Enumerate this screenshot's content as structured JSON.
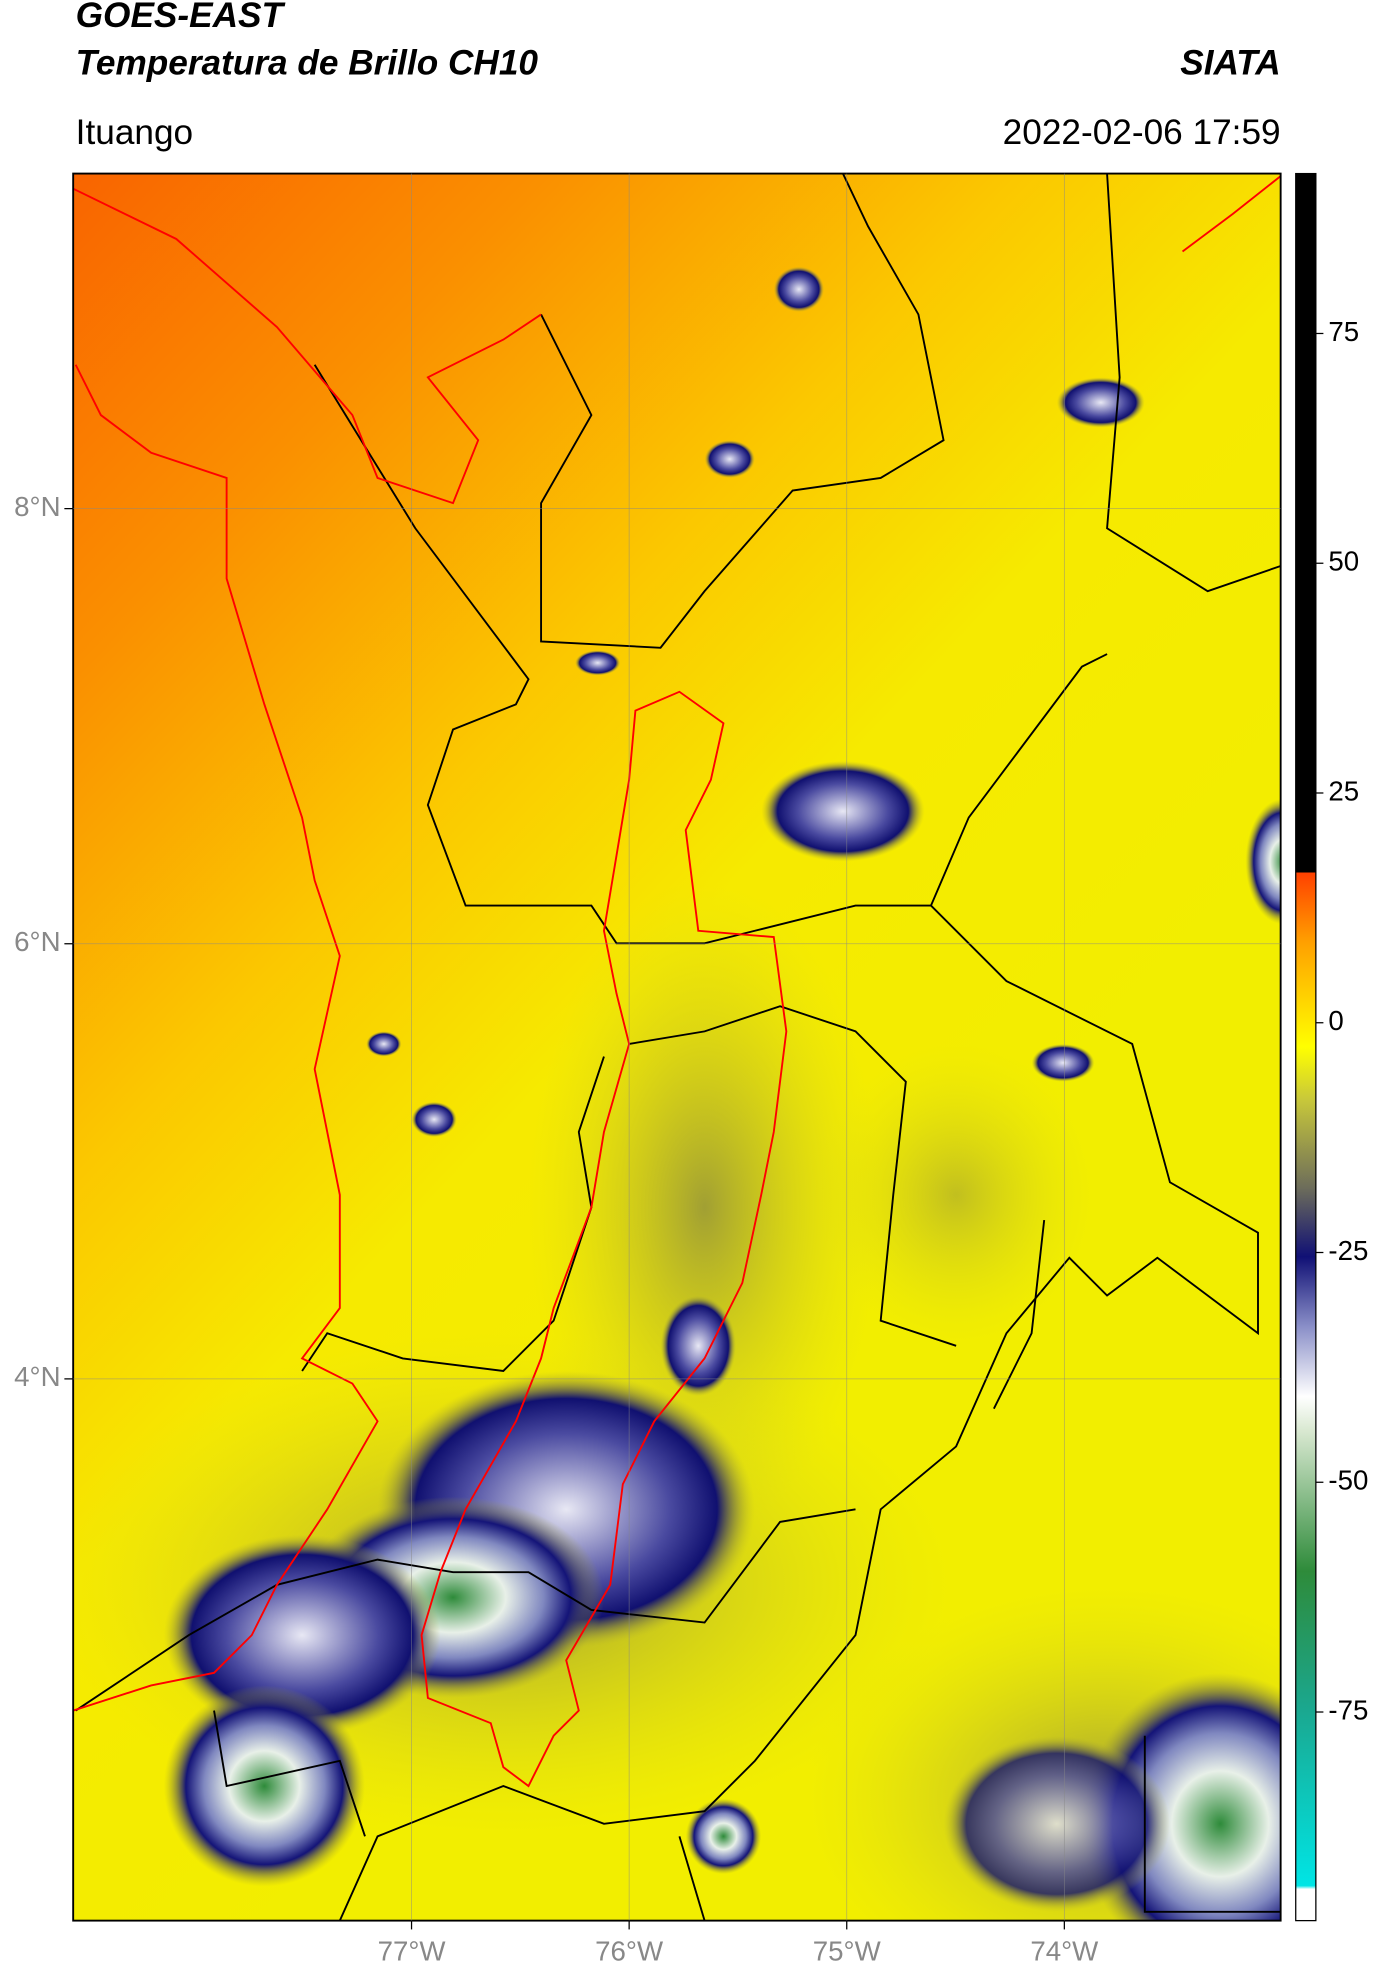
{
  "header": {
    "title": "GOES-EAST",
    "subtitle": "Temperatura de Brillo CH10",
    "brand": "SIATA",
    "place": "Ituango",
    "datetime": "2022-02-06 17:59"
  },
  "chart_data": {
    "type": "map",
    "xlim": [
      -78.555,
      -73.006
    ],
    "ylim": [
      1.51,
      9.54
    ],
    "xticks": [
      {
        "value": -77,
        "label": "77°W"
      },
      {
        "value": -76,
        "label": "76°W"
      },
      {
        "value": -75,
        "label": "75°W"
      },
      {
        "value": -74,
        "label": "74°W"
      }
    ],
    "yticks": [
      {
        "value": 8,
        "label": "8°N"
      },
      {
        "value": 6,
        "label": "6°N"
      },
      {
        "value": 4,
        "label": "4°N"
      }
    ],
    "grid": true,
    "colorbar": {
      "lim": [
        -97.7,
        92.4
      ],
      "ticks": [
        75,
        50,
        25,
        0,
        -25,
        -50,
        -75
      ]
    }
  }
}
